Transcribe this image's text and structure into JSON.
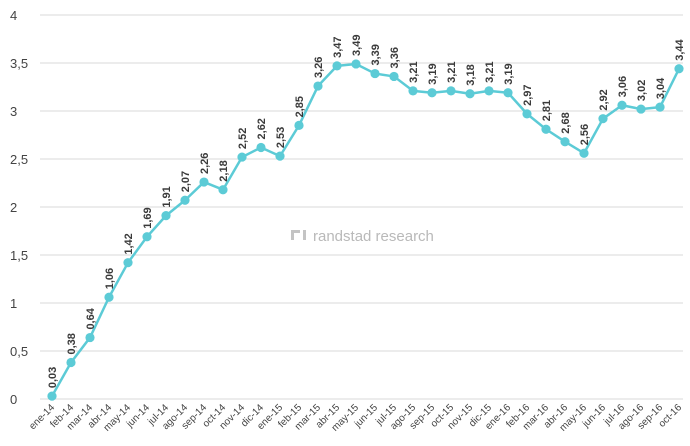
{
  "watermark": "randstad research",
  "colors": {
    "line": "#5ccbd6",
    "grid": "#d9d9d9",
    "text": "#444444"
  },
  "chart_data": {
    "type": "line",
    "title": "",
    "xlabel": "",
    "ylabel": "",
    "ylim": [
      0,
      4
    ],
    "yticks": [
      "0",
      "0,5",
      "1",
      "1,5",
      "2",
      "2,5",
      "3",
      "3,5",
      "4"
    ],
    "ytick_values": [
      0,
      0.5,
      1,
      1.5,
      2,
      2.5,
      3,
      3.5,
      4
    ],
    "grid": true,
    "legend": "none",
    "categories": [
      "ene-14",
      "feb-14",
      "mar-14",
      "abr-14",
      "may-14",
      "jun-14",
      "jul-14",
      "ago-14",
      "sep-14",
      "oct-14",
      "nov-14",
      "dic-14",
      "ene-15",
      "feb-15",
      "mar-15",
      "abr-15",
      "may-15",
      "jun-15",
      "jul-15",
      "ago-15",
      "sep-15",
      "oct-15",
      "nov-15",
      "dic-15",
      "ene-16",
      "feb-16",
      "mar-16",
      "abr-16",
      "may-16",
      "jun-16",
      "jul-16",
      "ago-16",
      "sep-16",
      "oct-16"
    ],
    "values": [
      0.03,
      0.38,
      0.64,
      1.06,
      1.42,
      1.69,
      1.91,
      2.07,
      2.26,
      2.18,
      2.52,
      2.62,
      2.53,
      2.85,
      3.26,
      3.47,
      3.49,
      3.39,
      3.36,
      3.21,
      3.19,
      3.21,
      3.18,
      3.21,
      3.19,
      2.97,
      2.81,
      2.68,
      2.56,
      2.92,
      3.06,
      3.02,
      3.04,
      3.44
    ],
    "value_labels": [
      "0,03",
      "0,38",
      "0,64",
      "1,06",
      "1,42",
      "1,69",
      "1,91",
      "2,07",
      "2,26",
      "2,18",
      "2,52",
      "2,62",
      "2,53",
      "2,85",
      "3,26",
      "3,47",
      "3,49",
      "3,39",
      "3,36",
      "3,21",
      "3,19",
      "3,21",
      "3,18",
      "3,21",
      "3,19",
      "2,97",
      "2,81",
      "2,68",
      "2,56",
      "2,92",
      "3,06",
      "3,02",
      "3,04",
      "3,44"
    ]
  }
}
